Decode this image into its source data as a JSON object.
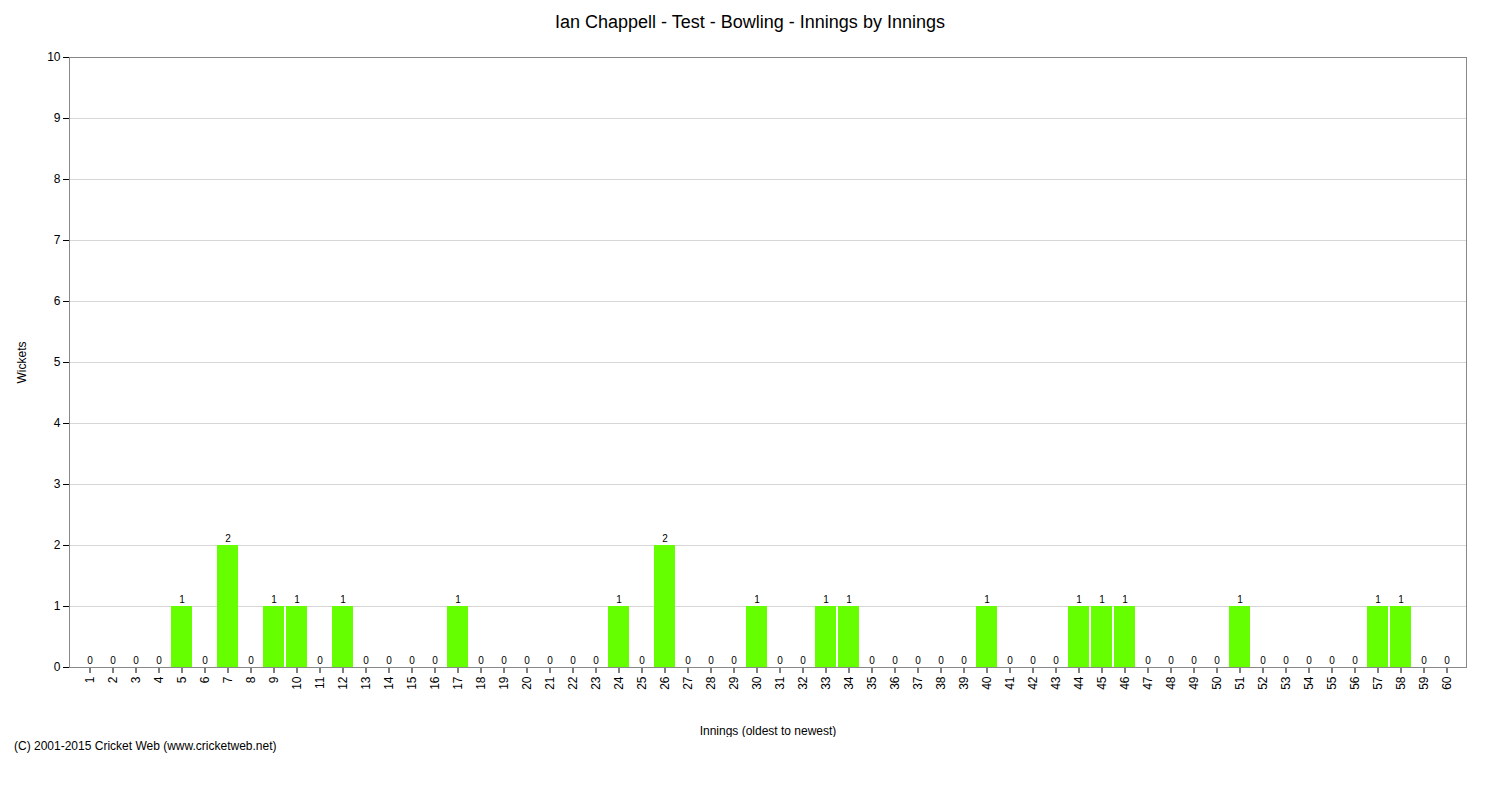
{
  "chart_data": {
    "type": "bar",
    "title": "Ian Chappell - Test - Bowling - Innings by Innings",
    "xlabel": "Innings (oldest to newest)",
    "ylabel": "Wickets",
    "footnote": "(C) 2001-2015 Cricket Web (www.cricketweb.net)",
    "categories": [
      "1",
      "2",
      "3",
      "4",
      "5",
      "6",
      "7",
      "8",
      "9",
      "10",
      "11",
      "12",
      "13",
      "14",
      "15",
      "16",
      "17",
      "18",
      "19",
      "20",
      "21",
      "22",
      "23",
      "24",
      "25",
      "26",
      "27",
      "28",
      "29",
      "30",
      "31",
      "32",
      "33",
      "34",
      "35",
      "36",
      "37",
      "38",
      "39",
      "40",
      "41",
      "42",
      "43",
      "44",
      "45",
      "46",
      "47",
      "48",
      "49",
      "50",
      "51",
      "52",
      "53",
      "54",
      "55",
      "56",
      "57",
      "58",
      "59",
      "60"
    ],
    "values": [
      0,
      0,
      0,
      0,
      1,
      0,
      2,
      0,
      1,
      1,
      0,
      1,
      0,
      0,
      0,
      0,
      1,
      0,
      0,
      0,
      0,
      0,
      0,
      1,
      0,
      2,
      0,
      0,
      0,
      1,
      0,
      0,
      1,
      1,
      0,
      0,
      0,
      0,
      0,
      1,
      0,
      0,
      0,
      1,
      1,
      1,
      0,
      0,
      0,
      0,
      1,
      0,
      0,
      0,
      0,
      0,
      1,
      1,
      0,
      0
    ],
    "color": "#66FF00",
    "ylim": [
      0,
      10
    ],
    "yticks": [
      0,
      1,
      2,
      3,
      4,
      5,
      6,
      7,
      8,
      9,
      10
    ],
    "grid": true,
    "data_labels": true
  }
}
